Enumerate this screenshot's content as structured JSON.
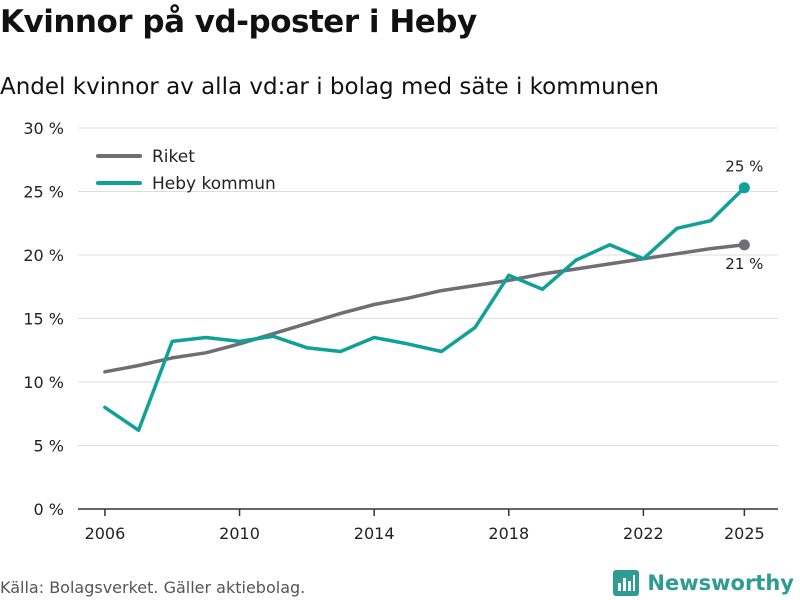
{
  "header": {
    "title": "Kvinnor på vd-poster i Heby",
    "subtitle": "Andel kvinnor av alla vd:ar i bolag med säte i kommunen"
  },
  "footer": {
    "source": "Källa: Bolagsverket. Gäller aktiebolag.",
    "brand_name": "Newsworthy",
    "brand_icon": "newsworthy-logo-icon"
  },
  "colors": {
    "riket": "#6f6e76",
    "heby": "#0fa197",
    "grid": "#dddddd",
    "axis": "#333333",
    "brand": "#2f9c94"
  },
  "chart_data": {
    "type": "line",
    "title": "Kvinnor på vd-poster i Heby",
    "subtitle": "Andel kvinnor av alla vd:ar i bolag med säte i kommunen",
    "xlabel": "",
    "ylabel": "",
    "xlim": [
      2005.2,
      2026
    ],
    "ylim": [
      0,
      30
    ],
    "x_ticks": [
      2006,
      2010,
      2014,
      2018,
      2022,
      2025
    ],
    "y_ticks": [
      0,
      5,
      10,
      15,
      20,
      25,
      30
    ],
    "y_tick_suffix": " %",
    "grid": "horizontal",
    "legend": "top-left",
    "x": [
      2006,
      2007,
      2008,
      2009,
      2010,
      2011,
      2012,
      2013,
      2014,
      2015,
      2016,
      2017,
      2018,
      2019,
      2020,
      2021,
      2022,
      2023,
      2024,
      2025
    ],
    "series": [
      {
        "name": "Riket",
        "color": "#6f6e76",
        "values": [
          10.8,
          11.3,
          11.9,
          12.3,
          13.0,
          13.8,
          14.6,
          15.4,
          16.1,
          16.6,
          17.2,
          17.6,
          18.0,
          18.5,
          18.9,
          19.3,
          19.7,
          20.1,
          20.5,
          20.8
        ],
        "end_label": "21 %"
      },
      {
        "name": "Heby kommun",
        "color": "#0fa197",
        "values": [
          8.0,
          6.2,
          13.2,
          13.5,
          13.2,
          13.6,
          12.7,
          12.4,
          13.5,
          13.0,
          12.4,
          14.3,
          18.4,
          17.3,
          19.6,
          20.8,
          19.7,
          22.1,
          22.7,
          25.3
        ],
        "end_label": "25 %"
      }
    ]
  }
}
